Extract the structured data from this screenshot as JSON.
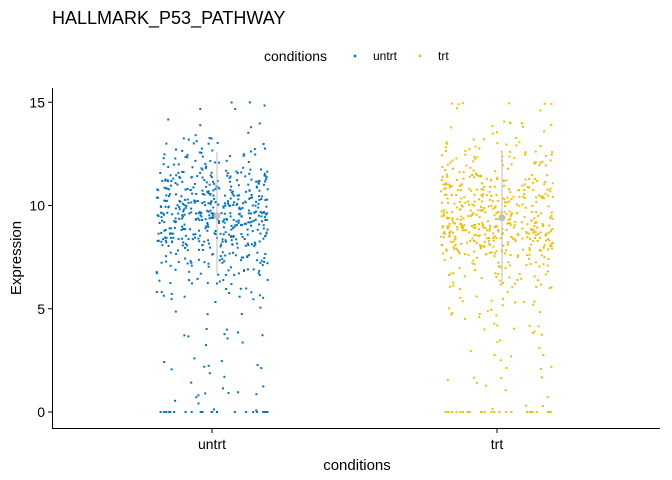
{
  "chart_data": {
    "type": "scatter",
    "subtype": "jitter-strip-with-summary",
    "title": "HALLMARK_P53_PATHWAY",
    "xlabel": "conditions",
    "ylabel": "Expression",
    "legend": {
      "title": "conditions",
      "position": "top",
      "entries": [
        "untrt",
        "trt"
      ]
    },
    "categories": [
      "untrt",
      "trt"
    ],
    "ylim": [
      -0.6,
      15.5
    ],
    "yticks": [
      0,
      5,
      10,
      15
    ],
    "grid": false,
    "points_per_group": 620,
    "series": [
      {
        "name": "untrt",
        "color": "#0073C2",
        "distribution": {
          "mean": 9.5,
          "sd": 3.0,
          "min": 0,
          "max": 15,
          "zero_count": 22
        },
        "summary": {
          "mean": 9.5,
          "lower": 6.7,
          "upper": 12.6
        }
      },
      {
        "name": "trt",
        "color": "#EFC000",
        "distribution": {
          "mean": 9.4,
          "sd": 3.0,
          "min": 0,
          "max": 15,
          "zero_count": 26
        },
        "summary": {
          "mean": 9.4,
          "lower": 6.2,
          "upper": 12.6
        }
      }
    ],
    "summary_color": "#BEBEBE"
  }
}
